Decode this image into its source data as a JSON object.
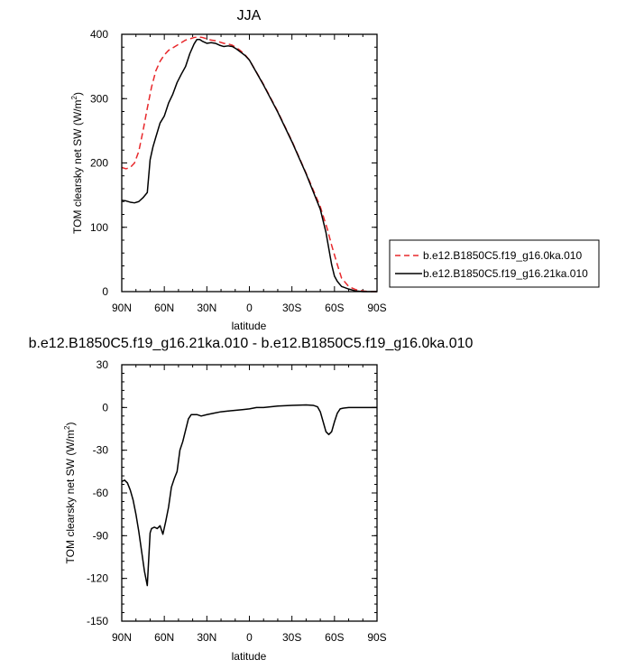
{
  "chart_data": [
    {
      "type": "line",
      "title": "JJA",
      "xlabel": "latitude",
      "ylabel": "TOM clearsky net SW (W/m",
      "ylabel_sup": "2",
      "ylabel_end": ")",
      "xlim": [
        90,
        -90
      ],
      "ylim": [
        0,
        400
      ],
      "x_ticks": [
        90,
        60,
        30,
        0,
        -30,
        -60,
        -90
      ],
      "x_tick_labels": [
        "90N",
        "60N",
        "30N",
        "0",
        "30S",
        "60S",
        "90S"
      ],
      "y_ticks": [
        0,
        100,
        200,
        300,
        400
      ],
      "y_tick_labels": [
        "0",
        "100",
        "200",
        "300",
        "400"
      ],
      "legend_position": "right",
      "series": [
        {
          "name": "b.e12.B1850C5.f19_g16.0ka.010",
          "color": "#e8282b",
          "dash": "dashed",
          "x": [
            90,
            87,
            84,
            81,
            78,
            75,
            72,
            69,
            66,
            63,
            60,
            57,
            54,
            51,
            48,
            45,
            42,
            39,
            36,
            33,
            30,
            27,
            24,
            21,
            18,
            15,
            12,
            9,
            6,
            3,
            0,
            -10,
            -20,
            -30,
            -40,
            -50,
            -55,
            -58,
            -62,
            -65,
            -70,
            -75,
            -80,
            -85,
            -90
          ],
          "y": [
            193,
            191,
            193,
            200,
            218,
            250,
            285,
            318,
            343,
            358,
            368,
            375,
            379,
            383,
            387,
            391,
            393,
            395,
            396,
            395,
            393,
            391,
            390,
            388,
            386,
            385,
            383,
            379,
            374,
            368,
            360,
            322,
            280,
            234,
            184,
            132,
            97,
            72,
            42,
            21,
            8,
            3,
            1,
            0,
            0
          ]
        },
        {
          "name": "b.e12.B1850C5.f19_g16.21ka.010",
          "color": "#000000",
          "dash": "solid",
          "x": [
            90,
            87,
            84,
            81,
            78,
            75,
            72,
            70,
            68,
            66,
            63,
            60,
            57,
            54,
            51,
            48,
            45,
            42,
            39,
            37,
            35,
            33,
            30,
            27,
            24,
            21,
            18,
            15,
            12,
            9,
            6,
            3,
            0,
            -10,
            -20,
            -30,
            -40,
            -50,
            -54,
            -56,
            -58,
            -60,
            -62,
            -65,
            -70,
            -75,
            -80,
            -85,
            -90
          ],
          "y": [
            142,
            141,
            139,
            138,
            140,
            146,
            154,
            205,
            225,
            240,
            262,
            273,
            293,
            307,
            325,
            338,
            350,
            370,
            385,
            392,
            392,
            389,
            386,
            387,
            386,
            383,
            381,
            382,
            381,
            377,
            372,
            367,
            360,
            321,
            279,
            233,
            183,
            128,
            92,
            67,
            42,
            24,
            16,
            8,
            4,
            1,
            0,
            0,
            0
          ]
        }
      ]
    },
    {
      "type": "line",
      "title": "b.e12.B1850C5.f19_g16.21ka.010 - b.e12.B1850C5.f19_g16.0ka.010",
      "xlabel": "latitude",
      "ylabel": "TOM clearsky net SW (W/m",
      "ylabel_sup": "2",
      "ylabel_end": ")",
      "xlim": [
        90,
        -90
      ],
      "ylim": [
        -150,
        30
      ],
      "x_ticks": [
        90,
        60,
        30,
        0,
        -30,
        -60,
        -90
      ],
      "x_tick_labels": [
        "90N",
        "60N",
        "30N",
        "0",
        "30S",
        "60S",
        "90S"
      ],
      "y_ticks": [
        -150,
        -120,
        -90,
        -60,
        -30,
        0,
        30
      ],
      "y_tick_labels": [
        "-150",
        "-120",
        "-90",
        "-60",
        "-30",
        "0",
        "30"
      ],
      "series": [
        {
          "color": "#000000",
          "dash": "solid",
          "x": [
            90,
            88,
            86,
            84,
            82,
            80,
            78,
            76,
            74,
            72,
            70,
            69,
            67,
            65,
            63,
            61,
            59,
            57,
            55,
            53,
            51,
            49,
            47,
            45,
            43,
            41,
            39,
            37,
            34,
            30,
            25,
            20,
            15,
            10,
            5,
            0,
            -5,
            -10,
            -20,
            -30,
            -40,
            -45,
            -48,
            -50,
            -52,
            -54,
            -56,
            -58,
            -60,
            -62,
            -64,
            -66,
            -70,
            -80,
            -90
          ],
          "y": [
            -52,
            -51,
            -53,
            -58,
            -65,
            -75,
            -87,
            -101,
            -115,
            -125,
            -88,
            -85,
            -84,
            -85,
            -83,
            -89,
            -80,
            -70,
            -56,
            -50,
            -45,
            -30,
            -24,
            -16,
            -8,
            -5,
            -5,
            -5,
            -6,
            -5,
            -4,
            -3,
            -2.5,
            -2,
            -1.5,
            -1,
            0,
            0,
            1,
            1.5,
            1.8,
            1.5,
            0.5,
            -3,
            -10,
            -17,
            -19,
            -17,
            -10,
            -4,
            -1,
            -0.5,
            0,
            0,
            0
          ]
        }
      ]
    }
  ]
}
